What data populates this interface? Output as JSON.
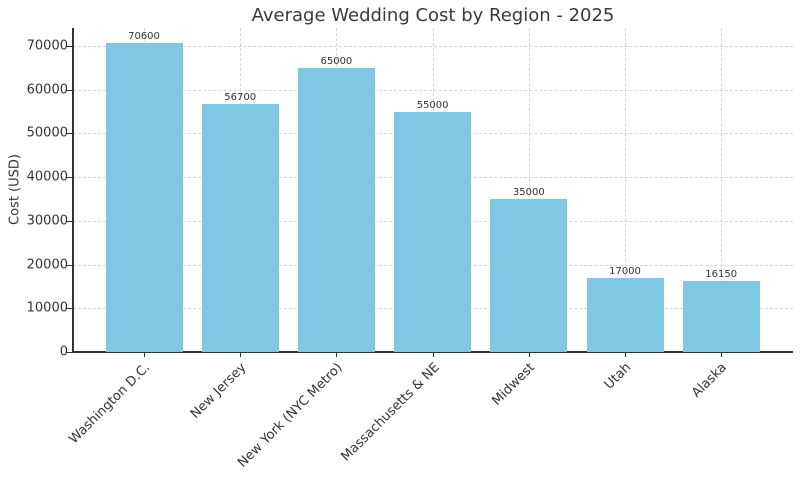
{
  "chart_data": {
    "type": "bar",
    "title": "Average Wedding Cost by Region - 2025",
    "xlabel": "",
    "ylabel": "Cost (USD)",
    "ylim": [
      0,
      74000
    ],
    "yticks": [
      0,
      10000,
      20000,
      30000,
      40000,
      50000,
      60000,
      70000
    ],
    "grid": true,
    "legend": null,
    "bar_color": "#7ec8e3",
    "categories": [
      "Washington D.C.",
      "New Jersey",
      "New York (NYC Metro)",
      "Massachusetts & NE",
      "Midwest",
      "Utah",
      "Alaska"
    ],
    "values": [
      70600,
      56700,
      65000,
      55000,
      35000,
      17000,
      16150
    ],
    "data_labels": [
      "70600",
      "56700",
      "65000",
      "55000",
      "35000",
      "17000",
      "16150"
    ]
  }
}
